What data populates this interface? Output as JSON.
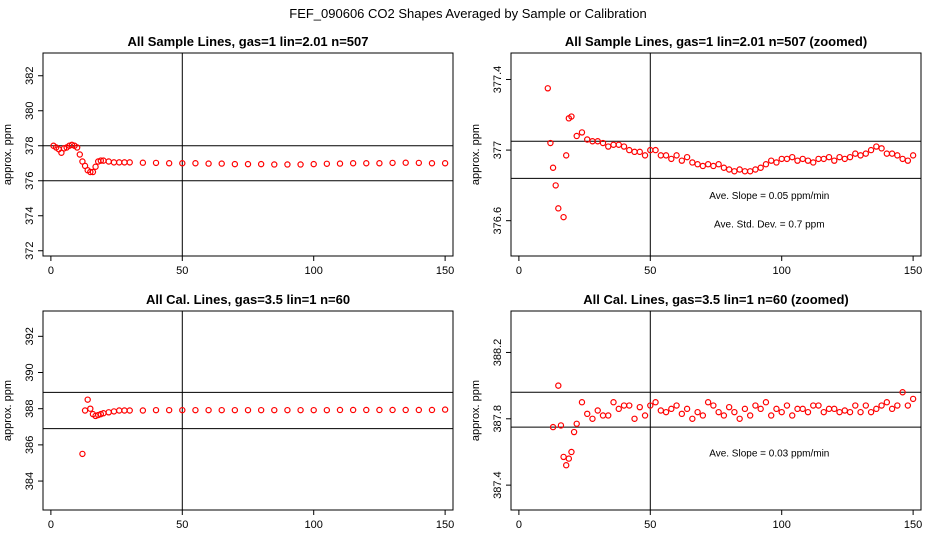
{
  "figure": {
    "title": "FEF_090606  CO2 Shapes Averaged by Sample or Calibration"
  },
  "colors": {
    "points": "#ff0000",
    "lines": "#000000",
    "background": "#ffffff"
  },
  "chart_data": [
    {
      "type": "scatter",
      "title": "All Sample Lines, gas=1 lin=2.01 n=507",
      "ylabel": "approx. ppm",
      "xlim": [
        -3,
        153
      ],
      "ylim": [
        371.7,
        383.3
      ],
      "x_ticks": [
        0,
        50,
        100,
        150
      ],
      "y_ticks": [
        372,
        374,
        376,
        378,
        380,
        382
      ],
      "vline": 50,
      "hlines": [
        378,
        376
      ],
      "annotations": [],
      "x": [
        1,
        2,
        3,
        4,
        5,
        6,
        7,
        8,
        9,
        10,
        11,
        12,
        13,
        14,
        15,
        16,
        17,
        18,
        19,
        20,
        22,
        24,
        26,
        28,
        30,
        35,
        40,
        45,
        50,
        55,
        60,
        65,
        70,
        75,
        80,
        85,
        90,
        95,
        100,
        105,
        110,
        115,
        120,
        125,
        130,
        135,
        140,
        145,
        150
      ],
      "y": [
        378.0,
        377.9,
        377.8,
        377.6,
        377.85,
        377.9,
        378.0,
        378.05,
        378.0,
        377.9,
        377.5,
        377.1,
        376.85,
        376.6,
        376.5,
        376.5,
        376.8,
        377.1,
        377.15,
        377.15,
        377.1,
        377.05,
        377.05,
        377.05,
        377.05,
        377.03,
        377.02,
        377.0,
        377.0,
        377.0,
        376.98,
        376.98,
        376.95,
        376.95,
        376.95,
        376.93,
        376.93,
        376.93,
        376.95,
        376.97,
        376.98,
        377.0,
        377.0,
        377.0,
        377.02,
        377.03,
        377.02,
        377.0,
        377.0
      ]
    },
    {
      "type": "scatter",
      "title": "All Sample Lines, gas=1 lin=2.01 n=507 (zoomed)",
      "ylabel": "approx. ppm",
      "xlim": [
        -3,
        153
      ],
      "ylim": [
        376.4,
        377.55
      ],
      "x_ticks": [
        0,
        50,
        100,
        150
      ],
      "y_ticks": [
        376.6,
        377.0,
        377.4
      ],
      "vline": 50,
      "hlines": [
        377.05,
        376.84
      ],
      "annotations": [
        "Ave. Slope =  0.05  ppm/min",
        "Ave. Std. Dev. =  0.7  ppm"
      ],
      "x": [
        11,
        12,
        13,
        14,
        15,
        17,
        18,
        19,
        20,
        22,
        24,
        26,
        28,
        30,
        32,
        34,
        36,
        38,
        40,
        42,
        44,
        46,
        48,
        50,
        52,
        54,
        56,
        58,
        60,
        62,
        64,
        66,
        68,
        70,
        72,
        74,
        76,
        78,
        80,
        82,
        84,
        86,
        88,
        90,
        92,
        94,
        96,
        98,
        100,
        102,
        104,
        106,
        108,
        110,
        112,
        114,
        116,
        118,
        120,
        122,
        124,
        126,
        128,
        130,
        132,
        134,
        136,
        138,
        140,
        142,
        144,
        146,
        148,
        150
      ],
      "y": [
        377.35,
        377.04,
        376.9,
        376.8,
        376.67,
        376.62,
        376.97,
        377.18,
        377.19,
        377.08,
        377.1,
        377.06,
        377.05,
        377.05,
        377.04,
        377.02,
        377.03,
        377.03,
        377.02,
        377.0,
        376.99,
        376.99,
        376.97,
        377.0,
        377.0,
        376.97,
        376.97,
        376.95,
        376.97,
        376.94,
        376.96,
        376.93,
        376.92,
        376.91,
        376.92,
        376.91,
        376.92,
        376.9,
        376.89,
        376.88,
        376.89,
        376.88,
        376.88,
        376.89,
        376.9,
        376.92,
        376.94,
        376.93,
        376.95,
        376.95,
        376.96,
        376.94,
        376.95,
        376.94,
        376.93,
        376.95,
        376.95,
        376.96,
        376.94,
        376.96,
        376.95,
        376.96,
        376.98,
        376.97,
        376.98,
        377.0,
        377.02,
        377.01,
        376.98,
        376.98,
        376.97,
        376.95,
        376.94,
        376.97
      ]
    },
    {
      "type": "scatter",
      "title": "All Cal. Lines, gas=3.5 lin=1 n=60",
      "ylabel": "approx. ppm",
      "xlim": [
        -3,
        153
      ],
      "ylim": [
        382.4,
        393.4
      ],
      "x_ticks": [
        0,
        50,
        100,
        150
      ],
      "y_ticks": [
        384,
        386,
        388,
        390,
        392
      ],
      "vline": 50,
      "hlines": [
        388.9,
        386.9
      ],
      "annotations": [],
      "x": [
        12,
        13,
        14,
        15,
        16,
        17,
        18,
        19,
        20,
        22,
        24,
        26,
        28,
        30,
        35,
        40,
        45,
        50,
        55,
        60,
        65,
        70,
        75,
        80,
        85,
        90,
        95,
        100,
        105,
        110,
        115,
        120,
        125,
        130,
        135,
        140,
        145,
        150
      ],
      "y": [
        385.5,
        387.9,
        388.5,
        388.0,
        387.7,
        387.6,
        387.65,
        387.7,
        387.75,
        387.8,
        387.85,
        387.9,
        387.9,
        387.9,
        387.9,
        387.92,
        387.92,
        387.92,
        387.92,
        387.92,
        387.92,
        387.92,
        387.92,
        387.92,
        387.92,
        387.92,
        387.92,
        387.92,
        387.92,
        387.93,
        387.93,
        387.93,
        387.93,
        387.93,
        387.93,
        387.93,
        387.93,
        387.95
      ]
    },
    {
      "type": "scatter",
      "title": "All Cal. Lines, gas=3.5 lin=1 n=60 (zoomed)",
      "ylabel": "approx. ppm",
      "xlim": [
        -3,
        153
      ],
      "ylim": [
        387.25,
        388.45
      ],
      "x_ticks": [
        0,
        50,
        100,
        150
      ],
      "y_ticks": [
        387.4,
        387.8,
        388.2
      ],
      "vline": 50,
      "hlines": [
        387.96,
        387.75
      ],
      "annotations": [
        "Ave. Slope =  0.03  ppm/min"
      ],
      "x": [
        13,
        15,
        16,
        17,
        18,
        19,
        20,
        21,
        22,
        24,
        26,
        28,
        30,
        32,
        34,
        36,
        38,
        40,
        42,
        44,
        46,
        48,
        50,
        52,
        54,
        56,
        58,
        60,
        62,
        64,
        66,
        68,
        70,
        72,
        74,
        76,
        78,
        80,
        82,
        84,
        86,
        88,
        90,
        92,
        94,
        96,
        98,
        100,
        102,
        104,
        106,
        108,
        110,
        112,
        114,
        116,
        118,
        120,
        122,
        124,
        126,
        128,
        130,
        132,
        134,
        136,
        138,
        140,
        142,
        144,
        146,
        148,
        150
      ],
      "y": [
        387.75,
        388.0,
        387.76,
        387.57,
        387.52,
        387.56,
        387.6,
        387.72,
        387.77,
        387.9,
        387.83,
        387.8,
        387.85,
        387.82,
        387.82,
        387.9,
        387.86,
        387.88,
        387.88,
        387.8,
        387.87,
        387.82,
        387.88,
        387.9,
        387.85,
        387.84,
        387.86,
        387.88,
        387.83,
        387.86,
        387.8,
        387.84,
        387.82,
        387.9,
        387.88,
        387.84,
        387.82,
        387.87,
        387.84,
        387.8,
        387.86,
        387.82,
        387.88,
        387.86,
        387.9,
        387.82,
        387.86,
        387.84,
        387.88,
        387.82,
        387.86,
        387.86,
        387.84,
        387.88,
        387.88,
        387.84,
        387.86,
        387.86,
        387.84,
        387.85,
        387.84,
        387.88,
        387.84,
        387.88,
        387.84,
        387.86,
        387.88,
        387.9,
        387.86,
        387.88,
        387.96,
        387.88,
        387.92
      ]
    }
  ]
}
